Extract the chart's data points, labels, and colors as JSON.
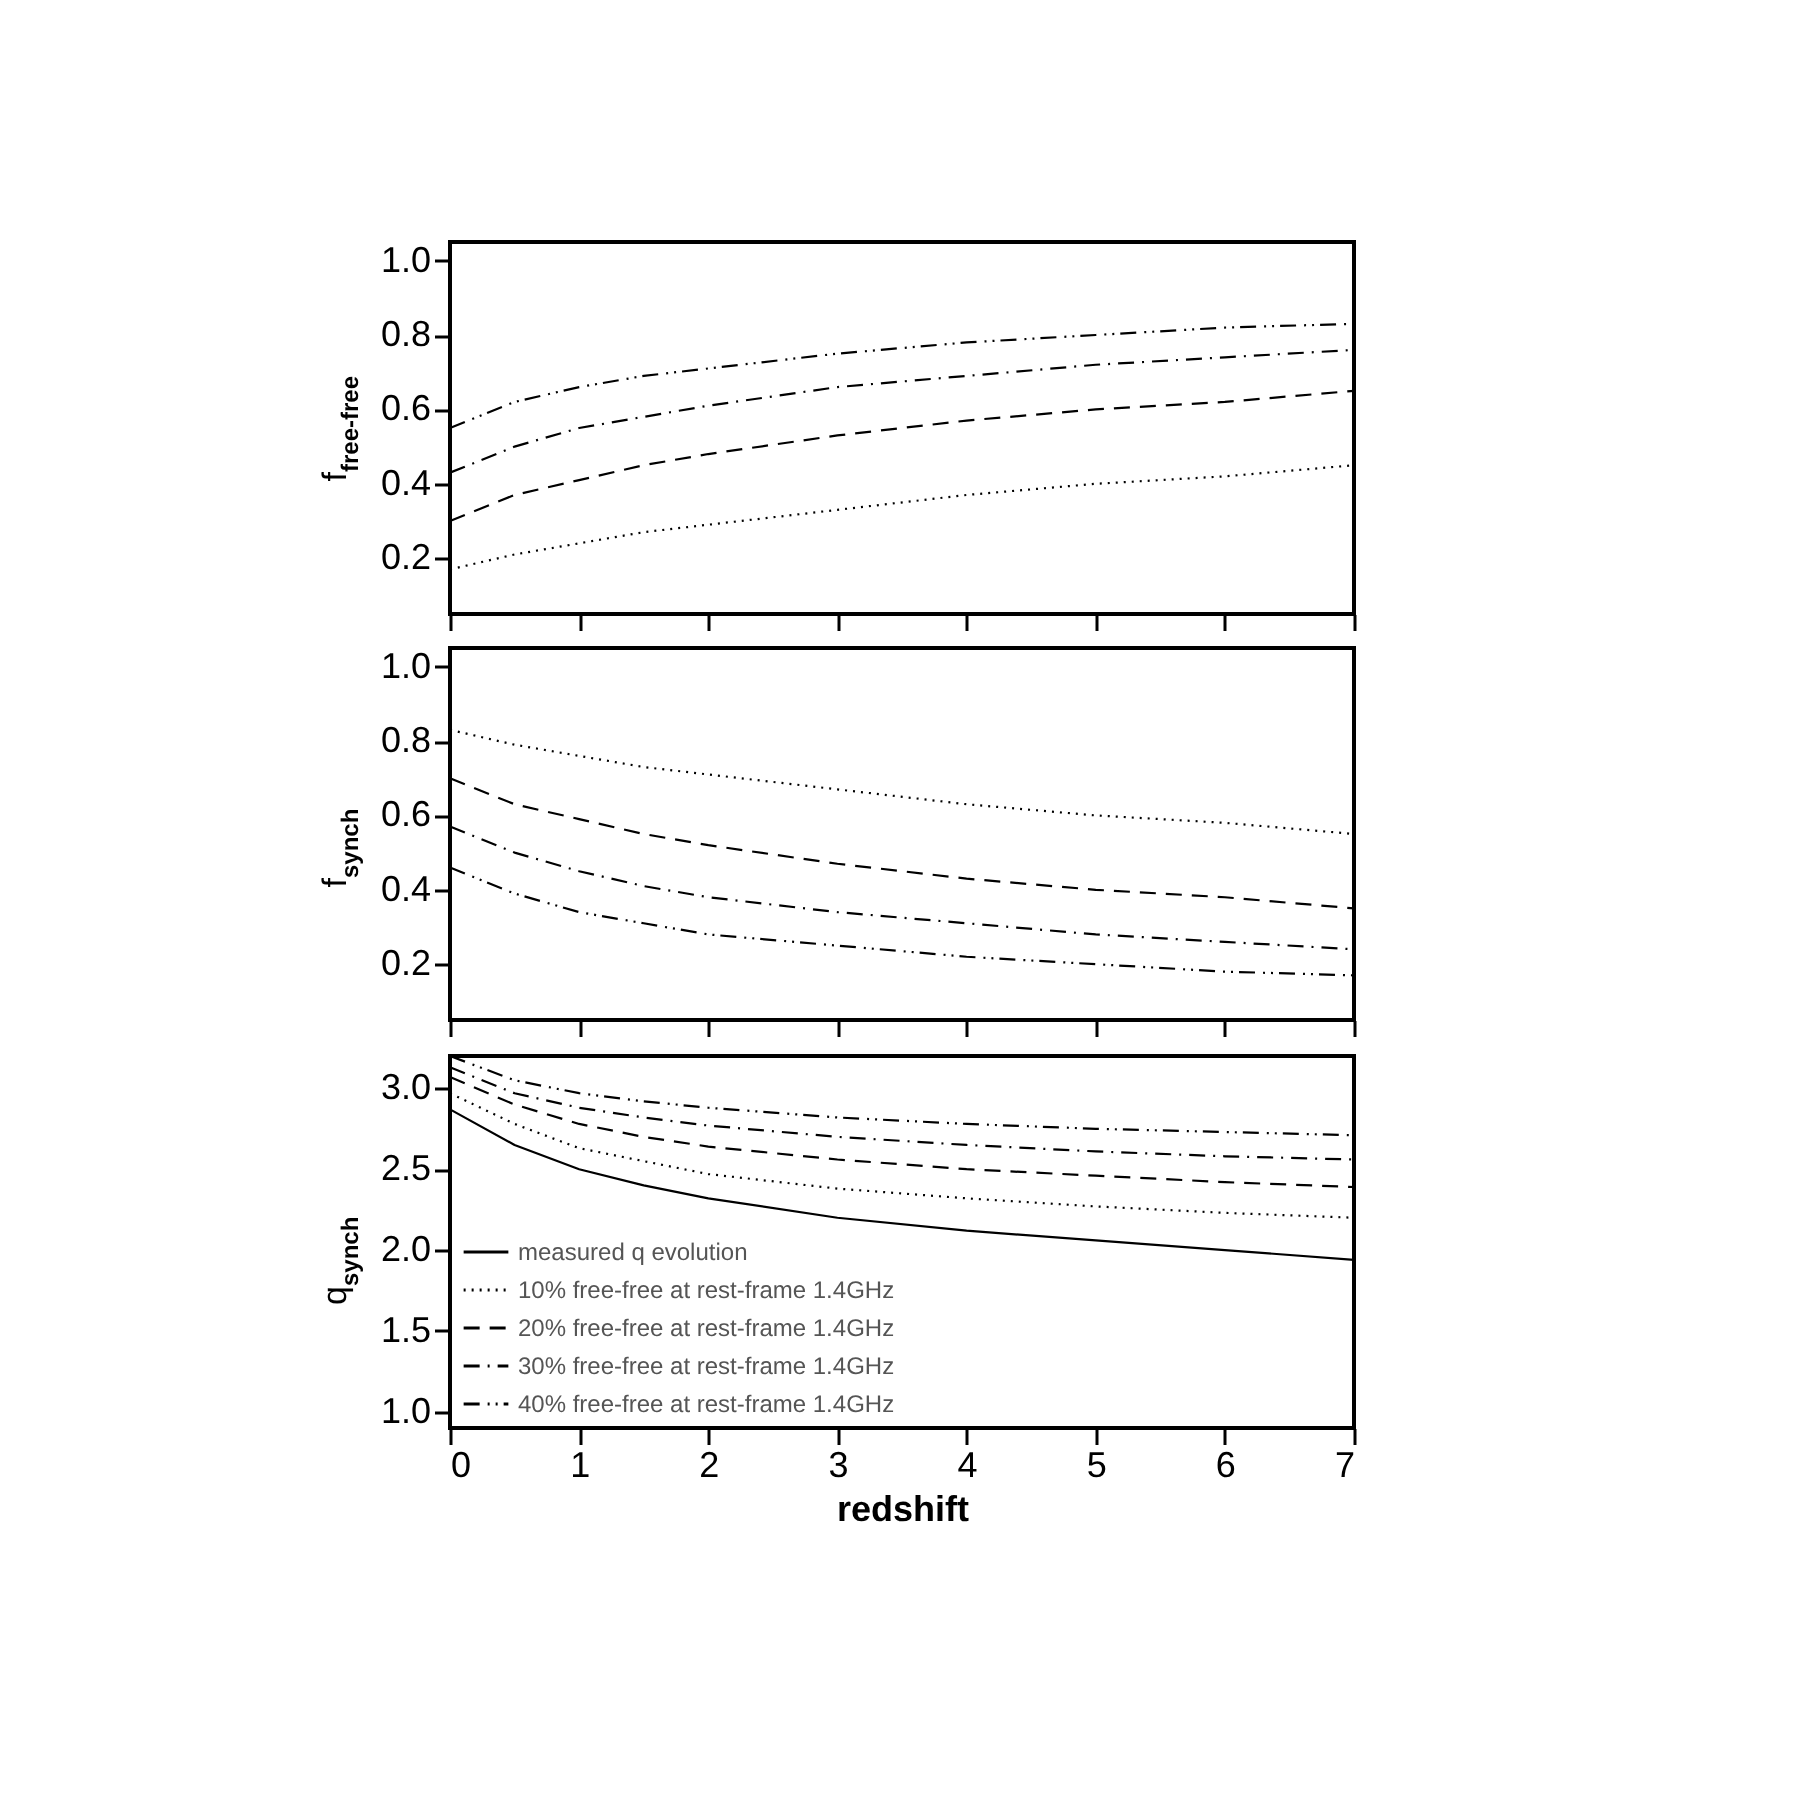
{
  "chart_data": [
    {
      "type": "line",
      "ylabel": "f$_{free-free}$",
      "xlim": [
        0,
        7
      ],
      "xticks": [
        0,
        1,
        2,
        3,
        4,
        5,
        6,
        7
      ],
      "ylim": [
        0.05,
        1.05
      ],
      "yticks": [
        0.2,
        0.4,
        0.6,
        0.8,
        {
          "value": 1,
          "label": "1.0"
        }
      ],
      "tick_labels": "y",
      "grid": false,
      "x": [
        0,
        0.5,
        1,
        1.5,
        2,
        3,
        4,
        5,
        6,
        7
      ],
      "series": [
        {
          "color": "#000000",
          "line_style": "dotted",
          "values": [
            0.17,
            0.21,
            0.24,
            0.27,
            0.29,
            0.33,
            0.37,
            0.4,
            0.42,
            0.45
          ]
        },
        {
          "color": "#000000",
          "line_style": "dashed",
          "values": [
            0.3,
            0.37,
            0.41,
            0.45,
            0.48,
            0.53,
            0.57,
            0.6,
            0.62,
            0.65
          ]
        },
        {
          "color": "#000000",
          "line_style": "dashdot",
          "values": [
            0.43,
            0.5,
            0.55,
            0.58,
            0.61,
            0.66,
            0.69,
            0.72,
            0.74,
            0.76
          ]
        },
        {
          "color": "#000000",
          "line_style": "dashdotdot",
          "values": [
            0.55,
            0.62,
            0.66,
            0.69,
            0.71,
            0.75,
            0.78,
            0.8,
            0.82,
            0.83
          ]
        }
      ]
    },
    {
      "type": "line",
      "ylabel": "f$_{synch}$",
      "xlim": [
        0,
        7
      ],
      "xticks": [
        0,
        1,
        2,
        3,
        4,
        5,
        6,
        7
      ],
      "ylim": [
        0.05,
        1.05
      ],
      "yticks": [
        0.2,
        0.4,
        0.6,
        0.8,
        {
          "value": 1,
          "label": "1.0"
        }
      ],
      "tick_labels": "y",
      "grid": false,
      "x": [
        0,
        0.5,
        1,
        1.5,
        2,
        3,
        4,
        5,
        6,
        7
      ],
      "series": [
        {
          "color": "#000000",
          "line_style": "dotted",
          "values": [
            0.83,
            0.79,
            0.76,
            0.73,
            0.71,
            0.67,
            0.63,
            0.6,
            0.58,
            0.55
          ]
        },
        {
          "color": "#000000",
          "line_style": "dashed",
          "values": [
            0.7,
            0.63,
            0.59,
            0.55,
            0.52,
            0.47,
            0.43,
            0.4,
            0.38,
            0.35
          ]
        },
        {
          "color": "#000000",
          "line_style": "dashdot",
          "values": [
            0.57,
            0.5,
            0.45,
            0.41,
            0.38,
            0.34,
            0.31,
            0.28,
            0.26,
            0.24
          ]
        },
        {
          "color": "#000000",
          "line_style": "dashdotdot",
          "values": [
            0.46,
            0.39,
            0.34,
            0.31,
            0.28,
            0.25,
            0.22,
            0.2,
            0.18,
            0.17
          ]
        }
      ]
    },
    {
      "type": "line",
      "xlabel": "redshift",
      "ylabel": "q$_{synch}$",
      "xlim": [
        0,
        7
      ],
      "xticks": [
        0,
        1,
        2,
        3,
        4,
        5,
        6,
        7
      ],
      "ylim": [
        0.9,
        3.2
      ],
      "yticks": [
        {
          "value": 1,
          "label": "1.0"
        },
        1.5,
        {
          "value": 2,
          "label": "2.0"
        },
        2.5,
        {
          "value": 3,
          "label": "3.0"
        }
      ],
      "grid": false,
      "legend": "bottom left",
      "x": [
        0,
        0.5,
        1,
        1.5,
        2,
        3,
        4,
        5,
        6,
        7
      ],
      "series": [
        {
          "name": "measured q evolution",
          "color": "#000000",
          "line_style": "solid",
          "values": [
            2.87,
            2.65,
            2.5,
            2.4,
            2.32,
            2.2,
            2.12,
            2.06,
            2.0,
            1.94
          ]
        },
        {
          "name": "10% free-free at rest-frame 1.4GHz",
          "color": "#000000",
          "line_style": "dotted",
          "values": [
            2.97,
            2.78,
            2.63,
            2.55,
            2.47,
            2.38,
            2.32,
            2.27,
            2.23,
            2.2
          ]
        },
        {
          "name": "20% free-free at rest-frame 1.4GHz",
          "color": "#000000",
          "line_style": "dashed",
          "values": [
            3.07,
            2.9,
            2.78,
            2.7,
            2.64,
            2.56,
            2.5,
            2.46,
            2.42,
            2.39
          ]
        },
        {
          "name": "30% free-free at rest-frame 1.4GHz",
          "color": "#000000",
          "line_style": "dashdot",
          "values": [
            3.13,
            2.97,
            2.88,
            2.82,
            2.77,
            2.7,
            2.65,
            2.61,
            2.58,
            2.56
          ]
        },
        {
          "name": "40% free-free at rest-frame 1.4GHz",
          "color": "#000000",
          "line_style": "dashdotdot",
          "values": [
            3.2,
            3.05,
            2.97,
            2.92,
            2.88,
            2.82,
            2.78,
            2.75,
            2.73,
            2.71
          ]
        }
      ]
    }
  ]
}
